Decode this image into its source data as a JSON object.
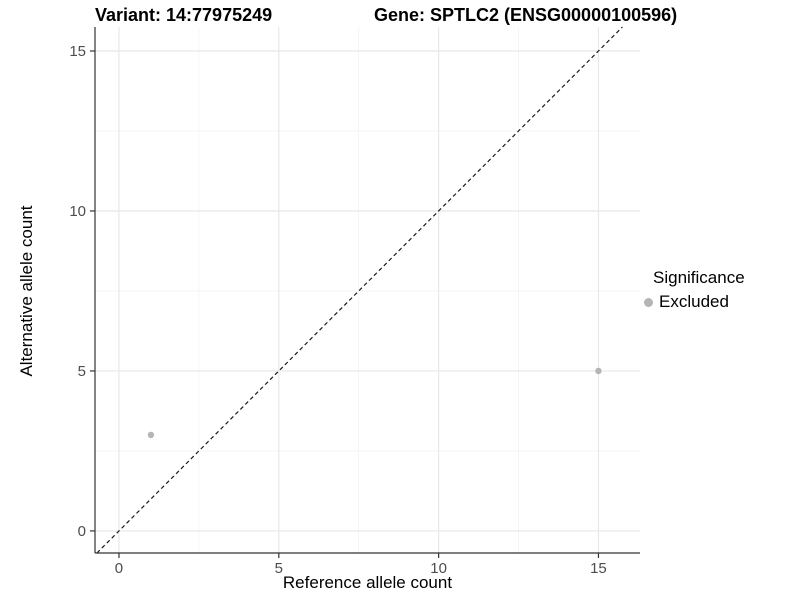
{
  "chart_data": {
    "type": "scatter",
    "title_left": "Variant: 14:77975249",
    "title_right": "Gene: SPTLC2 (ENSG00000100596)",
    "xlabel": "Reference allele count",
    "ylabel": "Alternative allele count",
    "xlim": [
      -0.75,
      16.3
    ],
    "ylim": [
      -0.69,
      15.75
    ],
    "x_ticks": [
      0,
      5,
      10,
      15
    ],
    "y_ticks": [
      0,
      5,
      10,
      15
    ],
    "x_minor_ticks": [
      2.5,
      7.5,
      12.5
    ],
    "y_minor_ticks": [
      2.5,
      7.5,
      12.5
    ],
    "grid": true,
    "series": [
      {
        "name": "Excluded",
        "color": "#b5b5b5",
        "points": [
          {
            "x": 1,
            "y": 3
          },
          {
            "x": 15,
            "y": 5
          }
        ]
      }
    ],
    "reference_line": {
      "equation": "y = x",
      "style": "dashed",
      "color": "#1a1a1a"
    },
    "legend": {
      "title": "Significance",
      "position": "right",
      "entries": [
        {
          "label": "Excluded",
          "color": "#b5b5b5"
        }
      ]
    },
    "colors": {
      "grid_major": "#e7e7e7",
      "grid_minor": "#f3f3f3",
      "axis_line": "#333333",
      "tick_label": "#4d4d4d"
    }
  }
}
